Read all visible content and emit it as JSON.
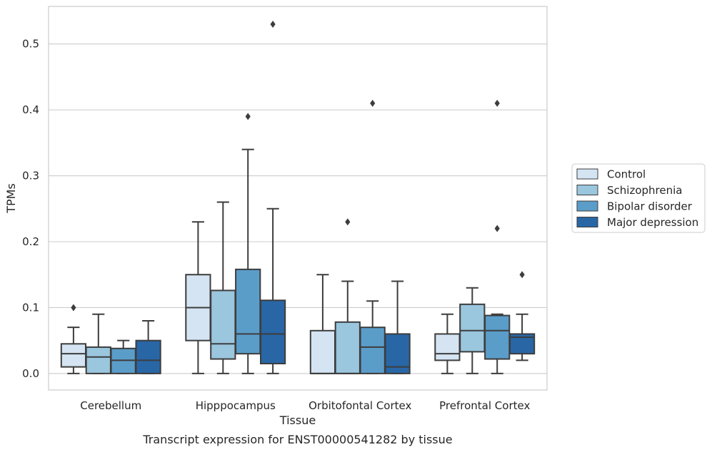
{
  "chart_data": {
    "type": "box",
    "xlabel": "Tissue",
    "ylabel": "TPMs",
    "caption": "Transcript expression for ENST00000541282 by tissue",
    "ylim": [
      -0.025,
      0.557
    ],
    "yticks": [
      "0.0",
      "0.1",
      "0.2",
      "0.3",
      "0.4",
      "0.5"
    ],
    "grid": true,
    "legend_position": "right",
    "categories": [
      "Cerebellum",
      "Hipppocampus",
      "Orbitofontal Cortex",
      "Prefrontal Cortex"
    ],
    "series": [
      {
        "name": "Control",
        "color": "#d5e4f3",
        "boxes": [
          {
            "whislo": 0.0,
            "q1": 0.01,
            "med": 0.03,
            "q3": 0.045,
            "whishi": 0.07,
            "fliers": [
              0.1
            ]
          },
          {
            "whislo": 0.0,
            "q1": 0.05,
            "med": 0.1,
            "q3": 0.15,
            "whishi": 0.23,
            "fliers": []
          },
          {
            "whislo": 0.0,
            "q1": 0.0,
            "med": 0.0,
            "q3": 0.065,
            "whishi": 0.15,
            "fliers": []
          },
          {
            "whislo": 0.0,
            "q1": 0.02,
            "med": 0.03,
            "q3": 0.06,
            "whishi": 0.09,
            "fliers": []
          }
        ]
      },
      {
        "name": "Schizophrenia",
        "color": "#9ac6de",
        "boxes": [
          {
            "whislo": 0.0,
            "q1": 0.0,
            "med": 0.025,
            "q3": 0.04,
            "whishi": 0.09,
            "fliers": []
          },
          {
            "whislo": 0.0,
            "q1": 0.022,
            "med": 0.045,
            "q3": 0.126,
            "whishi": 0.26,
            "fliers": []
          },
          {
            "whislo": 0.0,
            "q1": 0.0,
            "med": 0.0,
            "q3": 0.078,
            "whishi": 0.14,
            "fliers": [
              0.23
            ]
          },
          {
            "whislo": 0.0,
            "q1": 0.033,
            "med": 0.065,
            "q3": 0.105,
            "whishi": 0.13,
            "fliers": []
          }
        ]
      },
      {
        "name": "Bipolar disorder",
        "color": "#5b9dc9",
        "boxes": [
          {
            "whislo": 0.0,
            "q1": 0.0,
            "med": 0.02,
            "q3": 0.038,
            "whishi": 0.05,
            "fliers": []
          },
          {
            "whislo": 0.0,
            "q1": 0.03,
            "med": 0.06,
            "q3": 0.158,
            "whishi": 0.34,
            "fliers": [
              0.39
            ]
          },
          {
            "whislo": 0.0,
            "q1": 0.0,
            "med": 0.04,
            "q3": 0.07,
            "whishi": 0.11,
            "fliers": [
              0.41
            ]
          },
          {
            "whislo": 0.0,
            "q1": 0.022,
            "med": 0.065,
            "q3": 0.088,
            "whishi": 0.09,
            "fliers": [
              0.22,
              0.41
            ]
          }
        ]
      },
      {
        "name": "Major depression",
        "color": "#2866a6",
        "boxes": [
          {
            "whislo": 0.0,
            "q1": 0.0,
            "med": 0.02,
            "q3": 0.05,
            "whishi": 0.08,
            "fliers": []
          },
          {
            "whislo": 0.0,
            "q1": 0.015,
            "med": 0.06,
            "q3": 0.111,
            "whishi": 0.25,
            "fliers": [
              0.53
            ]
          },
          {
            "whislo": 0.0,
            "q1": 0.0,
            "med": 0.01,
            "q3": 0.06,
            "whishi": 0.14,
            "fliers": []
          },
          {
            "whislo": 0.02,
            "q1": 0.03,
            "med": 0.055,
            "q3": 0.06,
            "whishi": 0.09,
            "fliers": [
              0.15
            ]
          }
        ]
      }
    ]
  }
}
